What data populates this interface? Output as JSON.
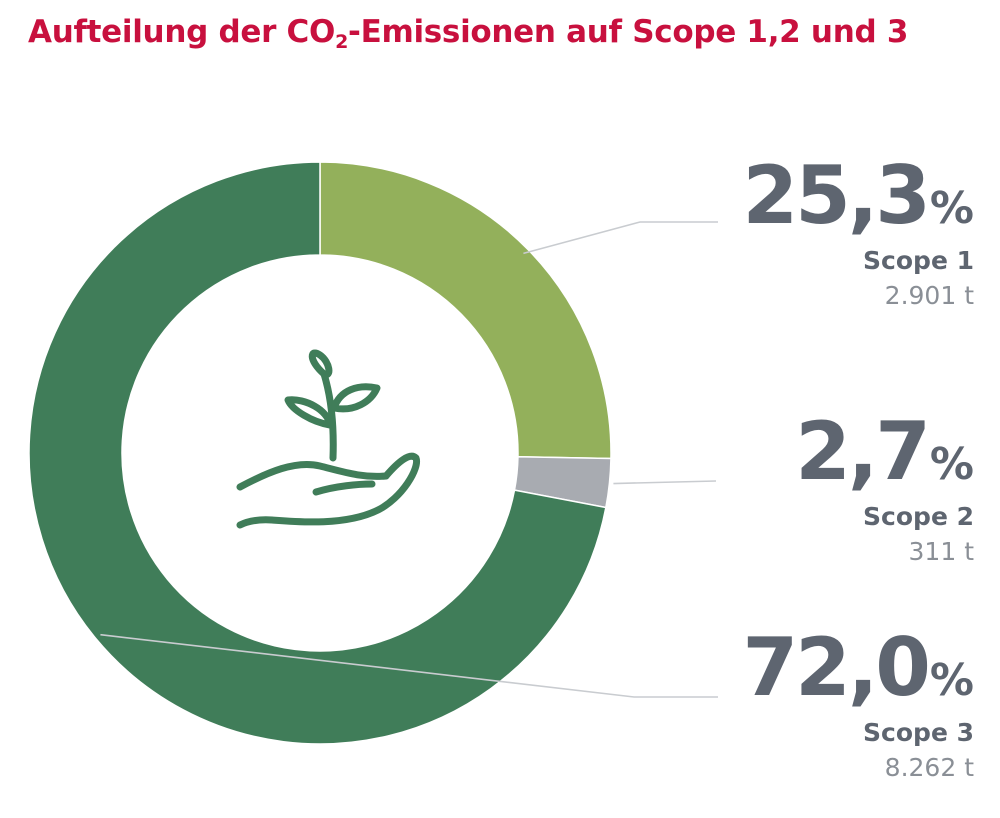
{
  "title": {
    "before": "Aufteilung der CO",
    "sub": "2",
    "after": "-Emissionen auf Scope 1,2 und 3"
  },
  "colors": {
    "title": "#c8103e",
    "text": "#5e6570",
    "subtext": "#8a8f96",
    "leader": "#c9ccd0"
  },
  "center_icon": "plant-in-hand-icon",
  "chart_data": {
    "type": "pie",
    "donut": true,
    "title": "Aufteilung der CO2-Emissionen auf Scope 1,2 und 3",
    "unit": "t",
    "slices": [
      {
        "label": "Scope 1",
        "percent": 25.3,
        "percent_text": "25,3",
        "value": 2901,
        "value_text": "2.901 t",
        "color": "#93b05b"
      },
      {
        "label": "Scope 2",
        "percent": 2.7,
        "percent_text": "2,7",
        "value": 311,
        "value_text": "311 t",
        "color": "#a8abb1"
      },
      {
        "label": "Scope 3",
        "percent": 72.0,
        "percent_text": "72,0",
        "value": 8262,
        "value_text": "8.262 t",
        "color": "#407d59"
      }
    ],
    "percent_symbol": "%",
    "legend": "right"
  }
}
